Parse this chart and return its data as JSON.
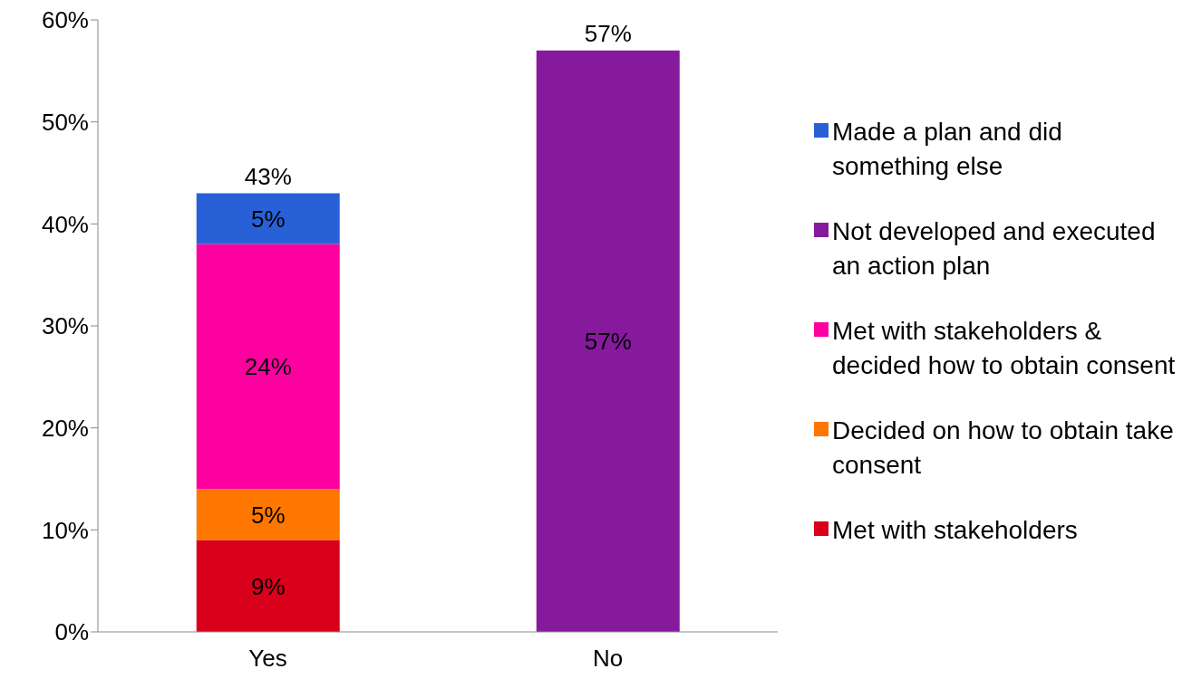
{
  "chart_data": {
    "type": "bar",
    "stacked": true,
    "categories": [
      "Yes",
      "No"
    ],
    "series": [
      {
        "name": "Met with stakeholders",
        "color": "#d9001b",
        "values": [
          9,
          null
        ],
        "value_labels": [
          "9%",
          null
        ]
      },
      {
        "name": "Decided on how to obtain take consent",
        "color": "#ff7700",
        "values": [
          5,
          null
        ],
        "value_labels": [
          "5%",
          null
        ]
      },
      {
        "name": "Met with stakeholders & decided how to obtain consent",
        "color": "#ff00a0",
        "values": [
          24,
          null
        ],
        "value_labels": [
          "24%",
          null
        ]
      },
      {
        "name": "Not developed and executed an action plan",
        "color": "#871a9c",
        "values": [
          null,
          57
        ],
        "value_labels": [
          null,
          "57%"
        ]
      },
      {
        "name": "Made a plan and did something else",
        "color": "#2860d8",
        "values": [
          5,
          null
        ],
        "value_labels": [
          "5%",
          null
        ]
      }
    ],
    "totals": [
      "43%",
      "57%"
    ],
    "ylim": [
      0,
      60
    ],
    "yticks": [
      {
        "value": 0,
        "label": "0%"
      },
      {
        "value": 10,
        "label": "10%"
      },
      {
        "value": 20,
        "label": "20%"
      },
      {
        "value": 30,
        "label": "30%"
      },
      {
        "value": 40,
        "label": "40%"
      },
      {
        "value": 50,
        "label": "50%"
      },
      {
        "value": 60,
        "label": "60%"
      }
    ],
    "grid": false,
    "legend": "right"
  }
}
